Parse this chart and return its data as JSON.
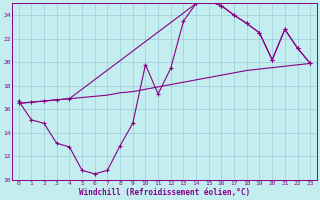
{
  "xlabel": "Windchill (Refroidissement éolien,°C)",
  "xlim": [
    -0.5,
    23.5
  ],
  "ylim": [
    10,
    25
  ],
  "yticks": [
    10,
    12,
    14,
    16,
    18,
    20,
    22,
    24
  ],
  "xticks": [
    0,
    1,
    2,
    3,
    4,
    5,
    6,
    7,
    8,
    9,
    10,
    11,
    12,
    13,
    14,
    15,
    16,
    17,
    18,
    19,
    20,
    21,
    22,
    23
  ],
  "line_color": "#880088",
  "bg_color": "#c4edf0",
  "grid_color": "#9accd8",
  "curve1_x": [
    0,
    1,
    2,
    3,
    4,
    5,
    6,
    7,
    8,
    9,
    10,
    11,
    12,
    13,
    14,
    15,
    16,
    17,
    18,
    19,
    20,
    21,
    22,
    23
  ],
  "curve1_y": [
    16.7,
    15.1,
    14.8,
    13.1,
    12.8,
    10.8,
    10.5,
    10.8,
    12.9,
    14.8,
    19.8,
    17.3,
    19.5,
    23.5,
    25.0,
    25.2,
    24.8,
    24.0,
    23.3,
    22.5,
    20.2,
    22.8,
    21.2,
    19.9
  ],
  "curve2_x": [
    0,
    1,
    2,
    3,
    4,
    5,
    6,
    7,
    8,
    9,
    10,
    11,
    12,
    13,
    14,
    15,
    16,
    17,
    18,
    23
  ],
  "curve2_y": [
    16.5,
    16.6,
    16.7,
    16.8,
    16.9,
    17.0,
    17.1,
    17.2,
    17.4,
    17.5,
    17.7,
    17.9,
    18.1,
    18.3,
    18.5,
    18.7,
    18.9,
    19.1,
    19.3,
    19.9
  ],
  "curve3_x": [
    0,
    1,
    2,
    3,
    4,
    14,
    15,
    16,
    17,
    18,
    19,
    20,
    21,
    22,
    23
  ],
  "curve3_y": [
    16.5,
    16.6,
    16.7,
    16.8,
    16.9,
    25.0,
    25.2,
    24.8,
    24.0,
    23.3,
    22.5,
    20.2,
    22.8,
    21.2,
    19.9
  ]
}
